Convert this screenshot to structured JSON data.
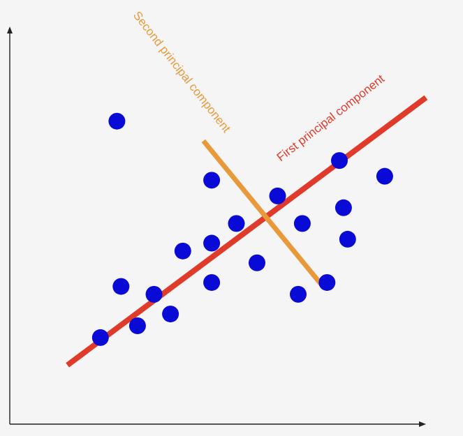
{
  "chart_data": {
    "type": "scatter",
    "title": "",
    "xlabel": "",
    "ylabel": "",
    "xlim": [
      0,
      10
    ],
    "ylim": [
      0,
      10
    ],
    "grid": false,
    "points": [
      {
        "x": 2.6,
        "y": 7.7
      },
      {
        "x": 4.9,
        "y": 6.2
      },
      {
        "x": 6.5,
        "y": 5.8
      },
      {
        "x": 8.0,
        "y": 6.7
      },
      {
        "x": 9.1,
        "y": 6.3
      },
      {
        "x": 5.5,
        "y": 5.1
      },
      {
        "x": 7.1,
        "y": 5.1
      },
      {
        "x": 8.2,
        "y": 4.7
      },
      {
        "x": 8.1,
        "y": 5.5
      },
      {
        "x": 4.2,
        "y": 4.4
      },
      {
        "x": 4.9,
        "y": 4.6
      },
      {
        "x": 6.0,
        "y": 4.1
      },
      {
        "x": 2.7,
        "y": 3.5
      },
      {
        "x": 3.5,
        "y": 3.3
      },
      {
        "x": 4.9,
        "y": 3.6
      },
      {
        "x": 7.0,
        "y": 3.3
      },
      {
        "x": 7.7,
        "y": 3.6
      },
      {
        "x": 3.9,
        "y": 2.8
      },
      {
        "x": 3.1,
        "y": 2.5
      },
      {
        "x": 2.2,
        "y": 2.2
      }
    ],
    "components": [
      {
        "name": "First principal component",
        "color": "#e03a2a",
        "from": {
          "x": 1.4,
          "y": 1.5
        },
        "to": {
          "x": 10.1,
          "y": 8.3
        }
      },
      {
        "name": "Second principal component",
        "color": "#e89a3a",
        "from": {
          "x": 4.7,
          "y": 7.2
        },
        "to": {
          "x": 7.6,
          "y": 3.5
        }
      }
    ]
  },
  "colors": {
    "background": "#f5f5f6",
    "axis": "#222222",
    "point": "#0a0ad6"
  }
}
